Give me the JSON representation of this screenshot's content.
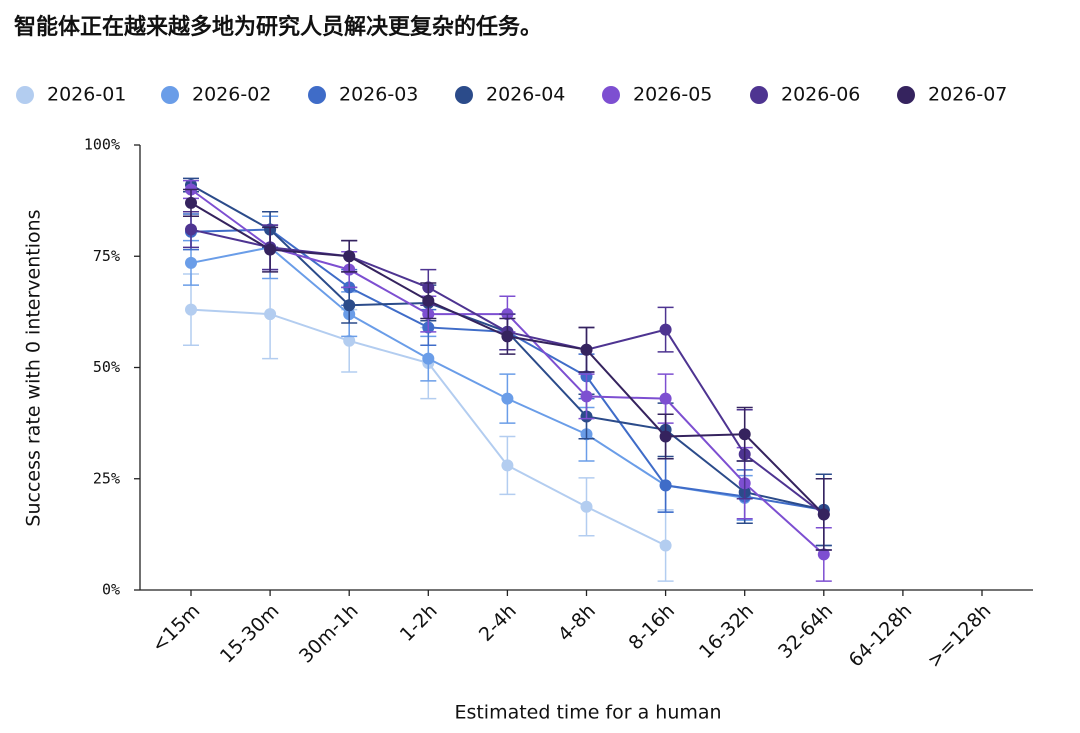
{
  "chart_data": {
    "type": "line",
    "title": "智能体正在越来越多地为研究人员解决更复杂的任务。",
    "x_label": "Estimated time for a human",
    "y_label": "Success rate with 0 interventions",
    "categories": [
      "<15m",
      "15-30m",
      "30m-1h",
      "1-2h",
      "2-4h",
      "4-8h",
      "8-16h",
      "16-32h",
      "32-64h",
      "64-128h",
      ">=128h"
    ],
    "ylim": [
      0,
      100
    ],
    "yticks": [
      {
        "value": 0,
        "label": "0%"
      },
      {
        "value": 25,
        "label": "25%"
      },
      {
        "value": 50,
        "label": "50%"
      },
      {
        "value": 75,
        "label": "75%"
      },
      {
        "value": 100,
        "label": "100%"
      }
    ],
    "legend": "top",
    "series": [
      {
        "name": "2026-01",
        "color": "#b3cdf0",
        "values": [
          63,
          62,
          56,
          51,
          28,
          18.7,
          10,
          null,
          null,
          null,
          null
        ],
        "errors": [
          8,
          10,
          7,
          8,
          6.5,
          6.5,
          8,
          null,
          null,
          null,
          null
        ]
      },
      {
        "name": "2026-02",
        "color": "#6a9de8",
        "values": [
          73.5,
          77,
          62,
          52,
          43,
          35,
          23.5,
          20.7,
          null,
          null,
          null
        ],
        "errors": [
          5,
          7,
          5,
          5,
          5.5,
          6,
          6,
          5,
          null,
          null,
          null
        ]
      },
      {
        "name": "2026-03",
        "color": "#3f6cc8",
        "values": [
          80.5,
          81,
          68,
          59,
          58,
          48,
          23.5,
          21,
          18,
          null,
          null
        ],
        "errors": [
          4,
          4,
          4,
          4,
          4,
          5,
          6,
          6,
          8,
          null,
          null
        ]
      },
      {
        "name": "2026-04",
        "color": "#2b4b8a",
        "values": [
          91,
          81,
          64,
          64.5,
          58,
          39,
          36,
          22,
          18,
          null,
          null
        ],
        "errors": [
          1.5,
          4,
          4,
          4,
          4,
          5,
          6,
          7,
          8,
          null,
          null
        ]
      },
      {
        "name": "2026-05",
        "color": "#7d4fd1",
        "values": [
          90,
          77,
          72,
          62,
          62,
          43.5,
          43,
          24,
          8,
          null,
          null
        ],
        "errors": [
          2,
          5,
          4,
          4,
          4,
          5,
          5.5,
          8,
          6,
          null,
          null
        ]
      },
      {
        "name": "2026-06",
        "color": "#4e3491",
        "values": [
          81,
          77,
          75,
          68,
          58,
          54,
          58.5,
          30.5,
          17,
          null,
          null
        ],
        "errors": [
          4,
          5,
          3.5,
          4,
          4,
          5,
          5,
          10,
          8,
          null,
          null
        ]
      },
      {
        "name": "2026-07",
        "color": "#35235e",
        "values": [
          87,
          76.5,
          75,
          65,
          57,
          54,
          34.5,
          35,
          17,
          null,
          null
        ],
        "errors": [
          3,
          5,
          3.5,
          4,
          4,
          5,
          5,
          6,
          8,
          null,
          null
        ]
      }
    ]
  }
}
